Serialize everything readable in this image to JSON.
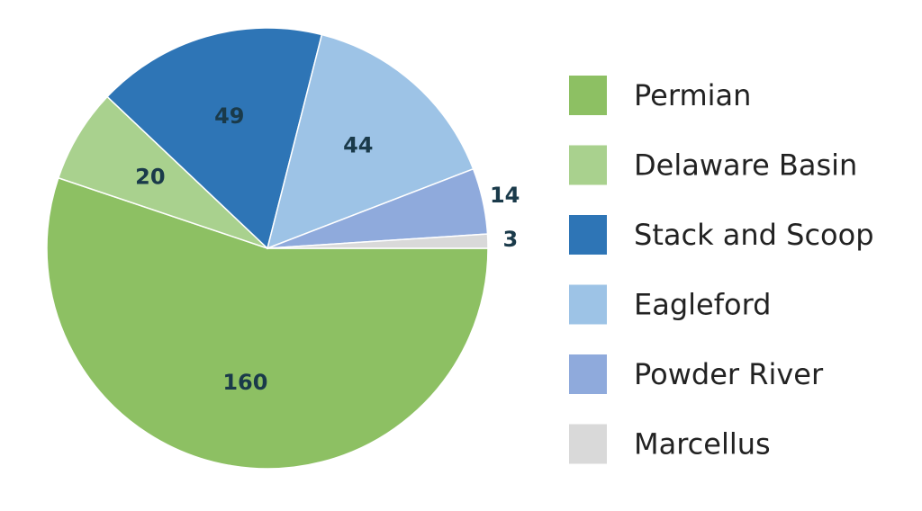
{
  "chart_data": {
    "type": "pie",
    "categories": [
      "Permian",
      "Delaware Basin",
      "Stack and Scoop",
      "Eagleford",
      "Powder River",
      "Marcellus"
    ],
    "values": [
      160,
      20,
      49,
      44,
      14,
      3
    ],
    "colors": [
      "#8dc063",
      "#a9d18e",
      "#2e75b6",
      "#9dc3e6",
      "#8faadc",
      "#d9d9d9"
    ],
    "legend": "right"
  }
}
